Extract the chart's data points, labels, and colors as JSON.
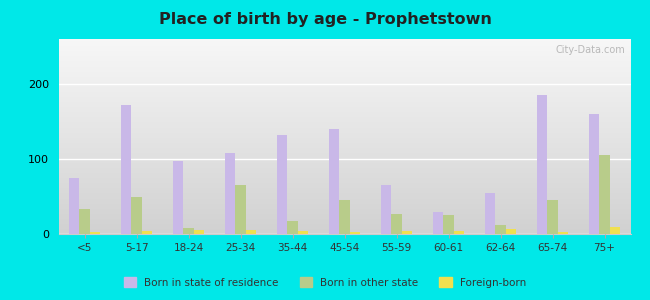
{
  "title": "Place of birth by age - Prophetstown",
  "categories": [
    "<5",
    "5-17",
    "18-24",
    "25-34",
    "35-44",
    "45-54",
    "55-59",
    "60-61",
    "62-64",
    "65-74",
    "75+"
  ],
  "born_in_state": [
    75,
    172,
    97,
    108,
    132,
    140,
    65,
    30,
    55,
    185,
    160
  ],
  "born_other_state": [
    33,
    50,
    8,
    65,
    18,
    46,
    27,
    26,
    12,
    46,
    105
  ],
  "foreign_born": [
    3,
    4,
    5,
    5,
    4,
    3,
    4,
    4,
    7,
    3,
    10
  ],
  "bar_colors": {
    "born_in_state": "#c9b8e8",
    "born_other_state": "#b8cc8a",
    "foreign_born": "#f0e050"
  },
  "ylim": [
    0,
    260
  ],
  "yticks": [
    0,
    100,
    200
  ],
  "figure_bg": "#00e8e8",
  "legend_labels": [
    "Born in state of residence",
    "Born in other state",
    "Foreign-born"
  ],
  "watermark": "City-Data.com"
}
